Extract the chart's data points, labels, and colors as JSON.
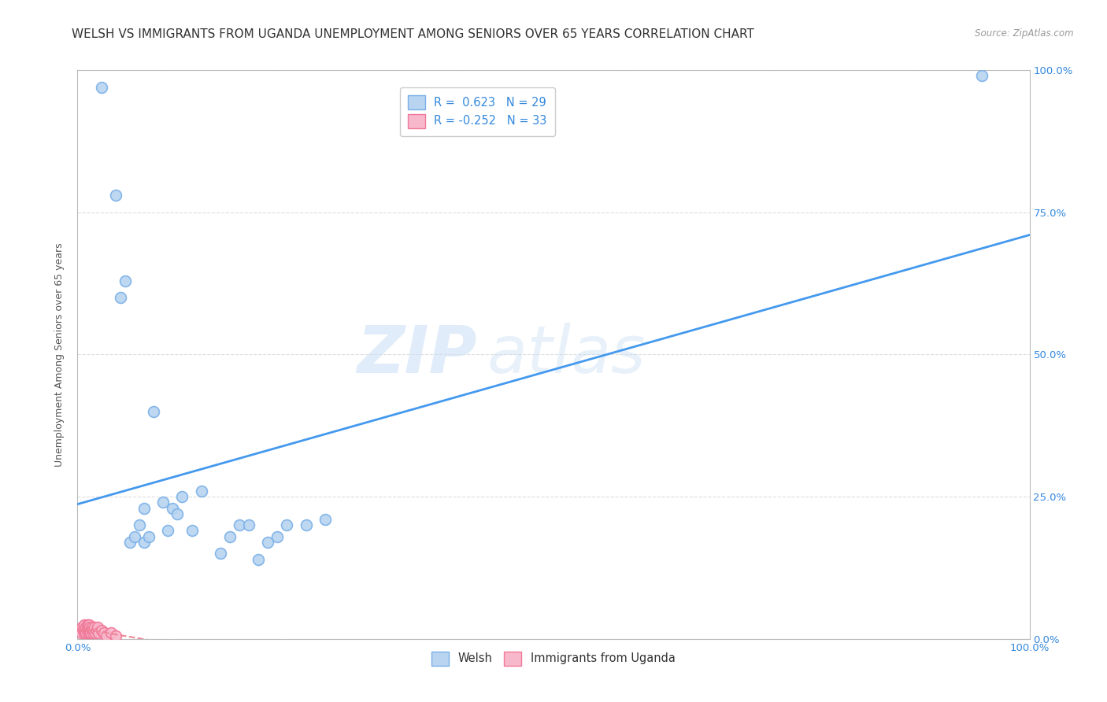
{
  "title": "WELSH VS IMMIGRANTS FROM UGANDA UNEMPLOYMENT AMONG SENIORS OVER 65 YEARS CORRELATION CHART",
  "source": "Source: ZipAtlas.com",
  "ylabel": "Unemployment Among Seniors over 65 years",
  "welsh_color": "#b8d4f0",
  "welsh_edge": "#7ab0e8",
  "uganda_color": "#f8b8cc",
  "uganda_edge": "#f07898",
  "welsh_line_color": "#4499ee",
  "uganda_line_color": "#ee8899",
  "watermark_zip": "ZIP",
  "watermark_atlas": "atlas",
  "legend_welsh_R": 0.623,
  "legend_welsh_N": 29,
  "legend_uganda_R": -0.252,
  "legend_uganda_N": 33,
  "xlim": [
    0,
    1
  ],
  "ylim": [
    0,
    1
  ],
  "background_color": "#ffffff",
  "plot_bg_color": "#ffffff",
  "grid_color": "#dddddd",
  "title_fontsize": 11,
  "axis_fontsize": 9,
  "tick_fontsize": 9.5,
  "marker_size": 100,
  "welsh_x": [
    0.025,
    0.04,
    0.045,
    0.05,
    0.055,
    0.06,
    0.065,
    0.07,
    0.07,
    0.075,
    0.08,
    0.09,
    0.095,
    0.1,
    0.105,
    0.11,
    0.12,
    0.13,
    0.15,
    0.16,
    0.17,
    0.18,
    0.19,
    0.2,
    0.21,
    0.22,
    0.24,
    0.26,
    0.95
  ],
  "welsh_y": [
    0.97,
    0.78,
    0.6,
    0.63,
    0.17,
    0.18,
    0.2,
    0.23,
    0.17,
    0.18,
    0.4,
    0.24,
    0.19,
    0.23,
    0.22,
    0.25,
    0.19,
    0.26,
    0.15,
    0.18,
    0.2,
    0.2,
    0.14,
    0.17,
    0.18,
    0.2,
    0.2,
    0.21,
    0.99
  ],
  "uganda_x": [
    0.003,
    0.004,
    0.005,
    0.006,
    0.007,
    0.007,
    0.008,
    0.009,
    0.009,
    0.01,
    0.01,
    0.011,
    0.011,
    0.012,
    0.012,
    0.013,
    0.013,
    0.014,
    0.014,
    0.015,
    0.015,
    0.016,
    0.017,
    0.018,
    0.019,
    0.02,
    0.021,
    0.022,
    0.025,
    0.028,
    0.03,
    0.035,
    0.04
  ],
  "uganda_y": [
    0.015,
    0.01,
    0.02,
    0.015,
    0.01,
    0.025,
    0.015,
    0.01,
    0.02,
    0.015,
    0.025,
    0.01,
    0.02,
    0.015,
    0.025,
    0.01,
    0.02,
    0.015,
    0.01,
    0.02,
    0.015,
    0.01,
    0.015,
    0.02,
    0.01,
    0.015,
    0.02,
    0.01,
    0.015,
    0.01,
    0.005,
    0.01,
    0.005
  ]
}
